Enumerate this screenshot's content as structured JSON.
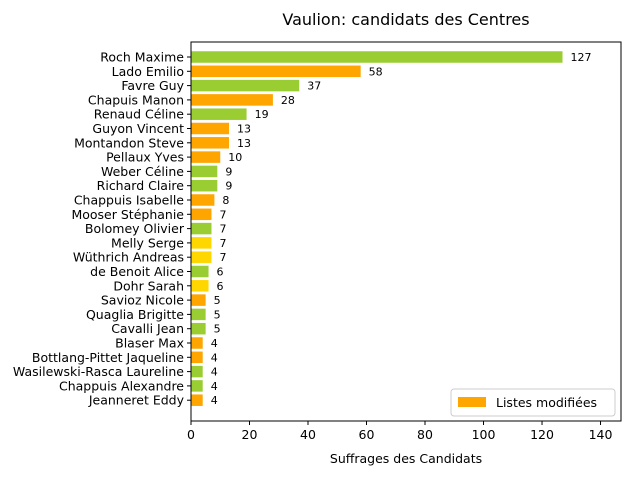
{
  "chart_data": {
    "type": "bar",
    "orientation": "horizontal",
    "title": "Vaulion: candidats des Centres",
    "xlabel": "Suffrages des Candidats",
    "ylabel": "",
    "xlim": [
      0,
      147
    ],
    "xticks": [
      0,
      20,
      40,
      60,
      80,
      100,
      120,
      140
    ],
    "grid": false,
    "legend": {
      "position": "bottom-right",
      "entries": [
        {
          "label": "Listes modifiées",
          "color": "#FFA500"
        }
      ]
    },
    "categories": [
      "Roch Maxime",
      "Lado Emilio",
      "Favre Guy",
      "Chapuis Manon",
      "Renaud Céline",
      "Guyon Vincent",
      "Montandon Steve",
      "Pellaux Yves",
      "Weber Céline",
      "Richard Claire",
      "Chappuis Isabelle",
      "Mooser Stéphanie",
      "Bolomey Olivier",
      "Melly Serge",
      "Wüthrich Andreas",
      "de Benoit Alice",
      "Dohr Sarah",
      "Savioz Nicole",
      "Quaglia Brigitte",
      "Cavalli Jean",
      "Blaser Max",
      "Bottlang-Pittet Jaqueline",
      "Wasilewski-Rasca Laureline",
      "Chappuis Alexandre",
      "Jeanneret Eddy"
    ],
    "values": [
      127,
      58,
      37,
      28,
      19,
      13,
      13,
      10,
      9,
      9,
      8,
      7,
      7,
      7,
      7,
      6,
      6,
      5,
      5,
      5,
      4,
      4,
      4,
      4,
      4
    ],
    "colors": [
      "#9ACD32",
      "#FFA500",
      "#9ACD32",
      "#FFA500",
      "#9ACD32",
      "#FFA500",
      "#FFA500",
      "#FFA500",
      "#9ACD32",
      "#9ACD32",
      "#FFA500",
      "#FFA500",
      "#9ACD32",
      "#FFD700",
      "#FFD700",
      "#9ACD32",
      "#FFD700",
      "#FFA500",
      "#9ACD32",
      "#9ACD32",
      "#FFA500",
      "#FFA500",
      "#9ACD32",
      "#9ACD32",
      "#FFA500"
    ]
  }
}
